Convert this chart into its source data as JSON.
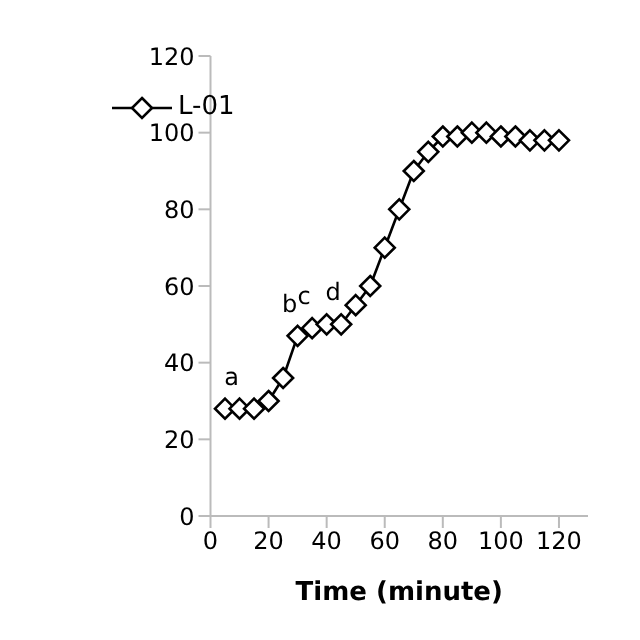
{
  "chart_data": {
    "type": "line",
    "xlabel": "Time (minute)",
    "x": [
      5,
      10,
      15,
      20,
      25,
      30,
      35,
      40,
      45,
      50,
      55,
      60,
      65,
      70,
      75,
      80,
      85,
      90,
      95,
      100,
      105,
      110,
      115,
      120
    ],
    "series": [
      {
        "name": "L-01",
        "color": "#000000",
        "values": [
          28,
          28,
          28,
          30,
          36,
          47,
          49,
          50,
          50,
          55,
          60,
          70,
          80,
          90,
          95,
          99,
          99,
          100,
          100,
          99,
          99,
          98,
          98,
          98
        ]
      }
    ],
    "xlim": [
      0,
      130
    ],
    "xticks": [
      0,
      20,
      40,
      60,
      80,
      100,
      120
    ],
    "ylim": [
      0,
      120
    ],
    "yticks": [
      0,
      20,
      40,
      60,
      80,
      100,
      120
    ],
    "marker": "diamond",
    "grid": false,
    "legend": "top left",
    "annotations": [
      {
        "text": "a",
        "x": 10,
        "y": 28
      },
      {
        "text": "b",
        "x": 30,
        "y": 47
      },
      {
        "text": "c",
        "x": 35,
        "y": 49
      },
      {
        "text": "d",
        "x": 45,
        "y": 50
      }
    ]
  }
}
